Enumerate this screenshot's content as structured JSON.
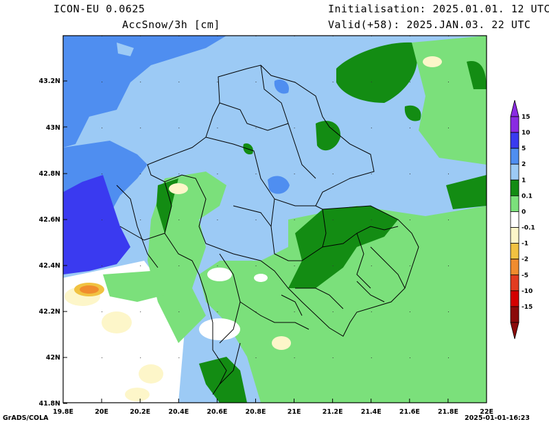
{
  "header": {
    "model": "ICON-EU 0.0625",
    "variable": "AccSnow/3h [cm]",
    "initialisation": "Initialisation: 2025.01.01. 12 UTC",
    "valid": "Valid(+58): 2025.JAN.03. 22 UTC"
  },
  "axes": {
    "lon_ticks": [
      "19.8E",
      "20E",
      "20.2E",
      "20.4E",
      "20.6E",
      "20.8E",
      "21E",
      "21.2E",
      "21.4E",
      "21.6E",
      "21.8E",
      "22E"
    ],
    "lat_ticks": [
      "43.2N",
      "43N",
      "42.8N",
      "42.6N",
      "42.4N",
      "42.2N",
      "42N",
      "41.8N"
    ]
  },
  "colorbar": {
    "labels": [
      "15",
      "10",
      "5",
      "2",
      "1",
      "0.1",
      "0",
      "-0.1",
      "-1",
      "-2",
      "-5",
      "-10",
      "-15"
    ],
    "colors": [
      "#8a2be2",
      "#3a3af0",
      "#4f8ef0",
      "#9ccaf5",
      "#138c13",
      "#7be07b",
      "#ffffff",
      "#fdf6c9",
      "#f1c241",
      "#f08c2e",
      "#e23c20",
      "#d40000",
      "#8b0a0a"
    ]
  },
  "footer": {
    "left": "GrADS/COLA",
    "right": "2025-01-01-16:23"
  }
}
